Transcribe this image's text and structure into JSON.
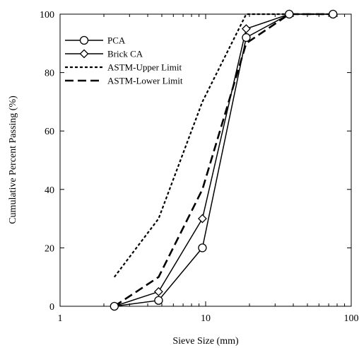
{
  "chart_data": {
    "type": "line",
    "xscale": "log",
    "xlabel": "Sieve Size (mm)",
    "ylabel": "Cumulative Percent Passing (%)",
    "xlim": [
      1,
      100
    ],
    "ylim": [
      0,
      100
    ],
    "x_ticks": [
      {
        "value": 1,
        "label": "1"
      },
      {
        "value": 10,
        "label": "10"
      },
      {
        "value": 100,
        "label": "100"
      }
    ],
    "y_ticks": [
      {
        "value": 0,
        "label": "0"
      },
      {
        "value": 20,
        "label": "20"
      },
      {
        "value": 40,
        "label": "40"
      },
      {
        "value": 60,
        "label": "60"
      },
      {
        "value": 80,
        "label": "80"
      },
      {
        "value": 100,
        "label": "100"
      }
    ],
    "grid": false,
    "legend_position": "top-left",
    "series": [
      {
        "name": "PCA",
        "marker": "circle",
        "line": "solid",
        "x": [
          2.36,
          4.75,
          9.5,
          19,
          37.5,
          75
        ],
        "y": [
          0,
          2,
          20,
          92,
          100,
          100
        ]
      },
      {
        "name": "Brick CA",
        "marker": "diamond",
        "line": "solid",
        "x": [
          2.36,
          4.75,
          9.5,
          19,
          37.5,
          75
        ],
        "y": [
          0,
          5,
          30,
          95,
          100,
          100
        ]
      },
      {
        "name": "ASTM-Upper Limit",
        "marker": "none",
        "line": "short-dash",
        "x": [
          2.36,
          4.75,
          9.5,
          19,
          37.5,
          75
        ],
        "y": [
          10,
          30,
          70,
          100,
          100,
          100
        ]
      },
      {
        "name": "ASTM-Lower Limit",
        "marker": "none",
        "line": "long-dash",
        "x": [
          2.36,
          4.75,
          9.5,
          19,
          37.5,
          75
        ],
        "y": [
          0,
          10,
          40,
          90,
          100,
          100
        ]
      }
    ]
  }
}
